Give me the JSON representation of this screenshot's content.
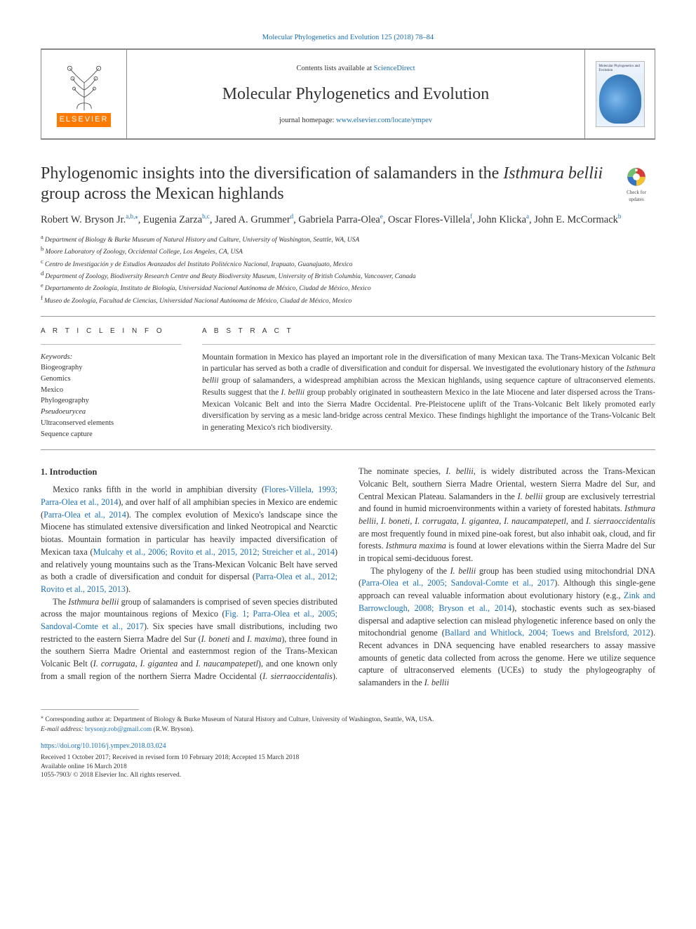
{
  "colors": {
    "link": "#1a6fb4",
    "text": "#333333",
    "rule": "#999999",
    "elsevier_orange": "#ff7a00",
    "badge_red": "#d83a3a",
    "badge_blue": "#3674c6",
    "badge_yellow": "#f3c22c"
  },
  "topbar_link": "Molecular Phylogenetics and Evolution 125 (2018) 78–84",
  "banner": {
    "publisher": "ELSEVIER",
    "contents_prefix": "Contents lists available at ",
    "contents_link": "ScienceDirect",
    "journal_name": "Molecular Phylogenetics and Evolution",
    "homepage_prefix": "journal homepage: ",
    "homepage_link": "www.elsevier.com/locate/ympev",
    "cover_caption_top": "Molecular\nPhylogenetics\nand Evolution"
  },
  "title": {
    "line1": "Phylogenomic insights into the diversification of salamanders in the ",
    "italic": "Isthmura bellii",
    "line2": " group across the Mexican highlands"
  },
  "check_badge": {
    "line1": "Check for",
    "line2": "updates"
  },
  "authors": [
    {
      "name": "Robert W. Bryson Jr.",
      "sup": "a,b,",
      "star": true
    },
    {
      "name": "Eugenia Zarza",
      "sup": "b,c"
    },
    {
      "name": "Jared A. Grummer",
      "sup": "d"
    },
    {
      "name": "Gabriela Parra-Olea",
      "sup": "e"
    },
    {
      "name": "Oscar Flores-Villela",
      "sup": "f"
    },
    {
      "name": "John Klicka",
      "sup": "a"
    },
    {
      "name": "John E. McCormack",
      "sup": "b"
    }
  ],
  "affiliations": [
    {
      "key": "a",
      "text": "Department of Biology & Burke Museum of Natural History and Culture, University of Washington, Seattle, WA, USA"
    },
    {
      "key": "b",
      "text": "Moore Laboratory of Zoology, Occidental College, Los Angeles, CA, USA"
    },
    {
      "key": "c",
      "text": "Centro de Investigación y de Estudios Avanzados del Instituto Politécnico Nacional, Irapuato, Guanajuato, Mexico"
    },
    {
      "key": "d",
      "text": "Department of Zoology, Biodiversity Research Centre and Beaty Biodiversity Museum, University of British Columbia, Vancouver, Canada"
    },
    {
      "key": "e",
      "text": "Departamento de Zoología, Instituto de Biología, Universidad Nacional Autónoma de México, Ciudad de México, Mexico"
    },
    {
      "key": "f",
      "text": "Museo de Zoología, Facultad de Ciencias, Universidad Nacional Autónoma de México, Ciudad de México, Mexico"
    }
  ],
  "article_info": {
    "header": "A R T I C L E  I N F O",
    "keywords_label": "Keywords:",
    "keywords": [
      "Biogeography",
      "Genomics",
      "Mexico",
      "Phylogeography"
    ],
    "keywords_italic": [
      "Pseudoeurycea"
    ],
    "keywords_after": [
      "Ultraconserved elements",
      "Sequence capture"
    ]
  },
  "abstract": {
    "header": "A B S T R A C T",
    "text_before": "Mountain formation in Mexico has played an important role in the diversification of many Mexican taxa. The Trans-Mexican Volcanic Belt in particular has served as both a cradle of diversification and conduit for dispersal. We investigated the evolutionary history of the ",
    "it1": "Isthmura bellii",
    "text_mid": " group of salamanders, a widespread amphibian across the Mexican highlands, using sequence capture of ultraconserved elements. Results suggest that the ",
    "it2": "I. bellii",
    "text_after": " group probably originated in southeastern Mexico in the late Miocene and later dispersed across the Trans-Mexican Volcanic Belt and into the Sierra Madre Occidental. Pre-Pleistocene uplift of the Trans-Volcanic Belt likely promoted early diversification by serving as a mesic land-bridge across central Mexico. These findings highlight the importance of the Trans-Volcanic Belt in generating Mexico's rich biodiversity."
  },
  "section1_heading": "1. Introduction",
  "para1": {
    "a": "Mexico ranks fifth in the world in amphibian diversity (",
    "link1": "Flores-Villela, 1993; Parra-Olea et al., 2014",
    "b": "), and over half of all amphibian species in Mexico are endemic (",
    "link2": "Parra-Olea et al., 2014",
    "c": "). The complex evolution of Mexico's landscape since the Miocene has stimulated extensive diversification and linked Neotropical and Nearctic biotas. Mountain formation in particular has heavily impacted diversification of Mexican taxa (",
    "link3": "Mulcahy et al., 2006; Rovito et al., 2015, 2012; Streicher et al., 2014",
    "d": ") and relatively young mountains such as the Trans-Mexican Volcanic Belt have served as both a cradle of diversification and conduit for dispersal (",
    "link4": "Parra-Olea et al., 2012; Rovito et al., 2015, 2013",
    "e": ")."
  },
  "para2": {
    "a": "The ",
    "it1": "Isthmura bellii",
    "b": " group of salamanders is comprised of seven species distributed across the major mountainous regions of Mexico (",
    "link1": "Fig. 1",
    "c": "; ",
    "link2": "Parra-Olea et al., 2005; Sandoval-Comte et al., 2017",
    "d": "). Six species have small distributions, including two restricted to the eastern Sierra Madre del Sur (",
    "it2": "I. boneti",
    "e": " and ",
    "it3": "I. maxima",
    "f": "), three found in the southern Sierra Madre Oriental and easternmost region of the Trans-Mexican Volcanic Belt (",
    "it4": "I. corrugata",
    "g": ", ",
    "it5": "I. gigantea",
    "h": " and ",
    "it6": "I. naucampatepetl",
    "i": "), and one known only from a small region of the northern Sierra Madre "
  },
  "para3": {
    "a": "Occidental (",
    "it1": "I. sierraoccidentalis",
    "b": "). The nominate species, ",
    "it2": "I. bellii",
    "c": ", is widely distributed across the Trans-Mexican Volcanic Belt, southern Sierra Madre Oriental, western Sierra Madre del Sur, and Central Mexican Plateau. Salamanders in the ",
    "it3": "I. bellii",
    "d": " group are exclusively terrestrial and found in humid microenvironments within a variety of forested habitats. ",
    "it4": "Isthmura bellii",
    "e": ", ",
    "it5": "I. boneti",
    "f": ", ",
    "it6": "I. corrugata",
    "g": ", ",
    "it7": "I. gigantea",
    "h": ", ",
    "it8": "I. naucampatepetl",
    "i": ", and ",
    "it9": "I. sierraoccidentalis",
    "j": " are most frequently found in mixed pine-oak forest, but also inhabit oak, cloud, and fir forests. ",
    "it10": "Isthmura maxima",
    "k": " is found at lower elevations within the Sierra Madre del Sur in tropical semi-deciduous forest."
  },
  "para4": {
    "a": "The phylogeny of the ",
    "it1": "I. bellii",
    "b": " group has been studied using mitochondrial DNA (",
    "link1": "Parra-Olea et al., 2005; Sandoval-Comte et al., 2017",
    "c": "). Although this single-gene approach can reveal valuable information about evolutionary history (e.g., ",
    "link2": "Zink and Barrowclough, 2008; Bryson et al., 2014",
    "d": "), stochastic events such as sex-biased dispersal and adaptive selection can mislead phylogenetic inference based on only the mitochondrial genome (",
    "link3": "Ballard and Whitlock, 2004; Toews and Brelsford, 2012",
    "e": "). Recent advances in DNA sequencing have enabled researchers to assay massive amounts of genetic data collected from across the genome. Here we utilize sequence capture of ultraconserved elements (UCEs) to study the phylogeography of salamanders in the ",
    "it2": "I. bellii"
  },
  "footnote": {
    "star": "⁎",
    "corr": " Corresponding author at: Department of Biology & Burke Museum of Natural History and Culture, University of Washington, Seattle, WA, USA.",
    "email_label": "E-mail address: ",
    "email": "brysonjr.rob@gmail.com",
    "email_suffix": " (R.W. Bryson)."
  },
  "doi": "https://doi.org/10.1016/j.ympev.2018.03.024",
  "history": {
    "l1": "Received 1 October 2017; Received in revised form 10 February 2018; Accepted 15 March 2018",
    "l2": "Available online 16 March 2018",
    "l3": "1055-7903/ © 2018 Elsevier Inc. All rights reserved."
  }
}
